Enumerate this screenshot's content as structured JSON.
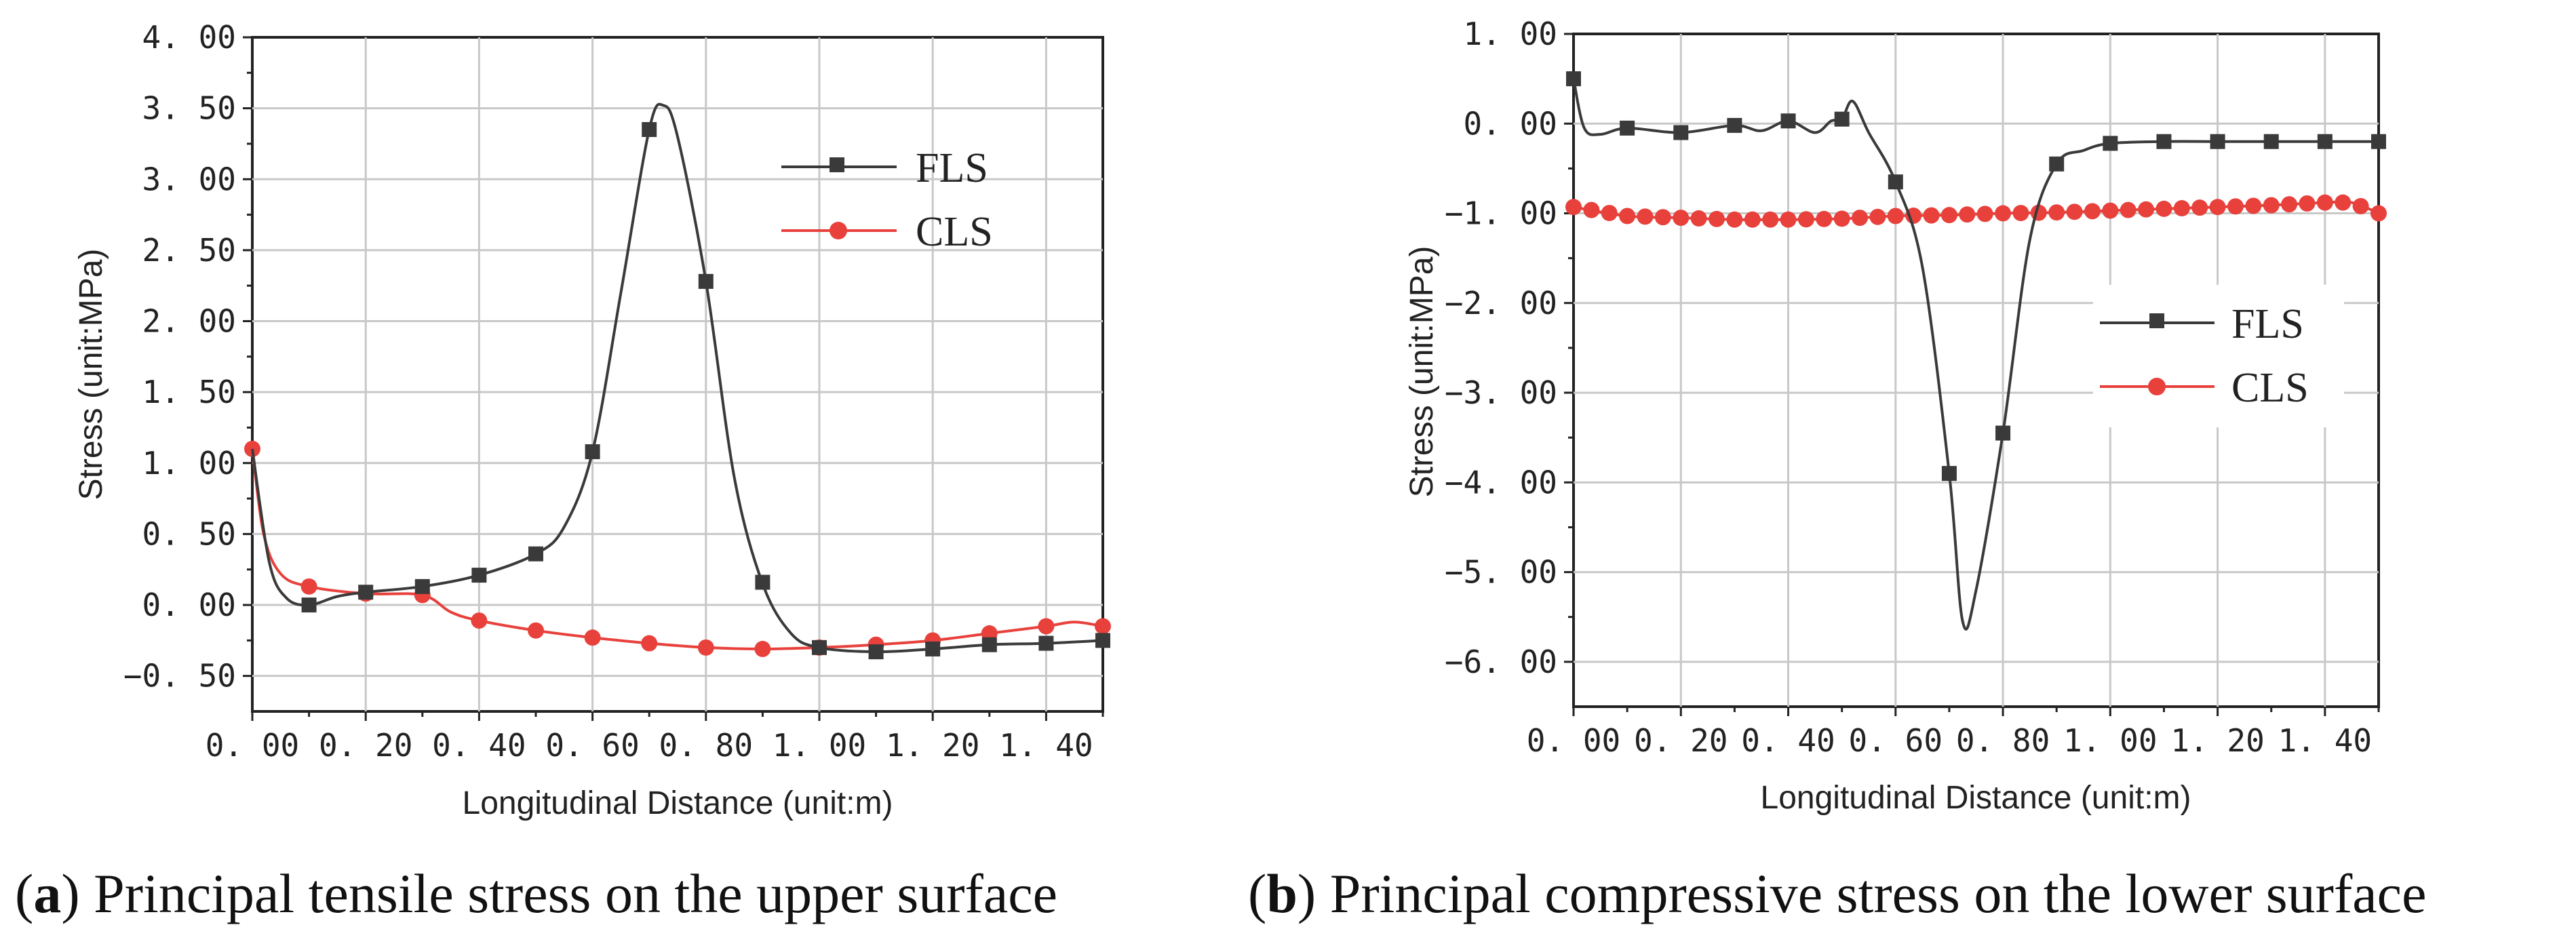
{
  "figure": {
    "captions": [
      {
        "letter": "a",
        "text": " Principal tensile stress on the upper surface"
      },
      {
        "letter": "b",
        "text": " Principal compressive stress on the lower surface"
      }
    ]
  },
  "chart_data": [
    {
      "type": "line",
      "title": "",
      "xlabel": "Longitudinal Distance (unit:m)",
      "ylabel": "Stress (unit:MPa)",
      "xlim": [
        0,
        1.5
      ],
      "ylim": [
        -0.75,
        4.0
      ],
      "xticks": [
        0,
        0.2,
        0.4,
        0.6,
        0.8,
        1.0,
        1.2,
        1.4
      ],
      "xtick_labels": [
        "0. 00",
        "0. 20",
        "0. 40",
        "0. 60",
        "0. 80",
        "1. 00",
        "1. 20",
        "1. 40"
      ],
      "yticks": [
        -0.5,
        0,
        0.5,
        1.0,
        1.5,
        2.0,
        2.5,
        3.0,
        3.5,
        4.0
      ],
      "ytick_labels": [
        "−0. 50",
        "0. 00",
        "0. 50",
        "1. 00",
        "1. 50",
        "2. 00",
        "2. 50",
        "3. 00",
        "3. 50",
        "4. 00"
      ],
      "grid": true,
      "legend_position": "upper-right",
      "series": [
        {
          "name": "FLS",
          "color": "#3a3a3a",
          "marker": "square",
          "line": [
            [
              0,
              1.1
            ],
            [
              0.03,
              0.3
            ],
            [
              0.06,
              0.05
            ],
            [
              0.1,
              0.0
            ],
            [
              0.15,
              0.06
            ],
            [
              0.2,
              0.09
            ],
            [
              0.3,
              0.13
            ],
            [
              0.4,
              0.21
            ],
            [
              0.5,
              0.36
            ],
            [
              0.55,
              0.55
            ],
            [
              0.6,
              1.08
            ],
            [
              0.65,
              2.2
            ],
            [
              0.7,
              3.35
            ],
            [
              0.725,
              3.52
            ],
            [
              0.75,
              3.3
            ],
            [
              0.8,
              2.28
            ],
            [
              0.85,
              0.9
            ],
            [
              0.9,
              0.15
            ],
            [
              0.95,
              -0.2
            ],
            [
              1.0,
              -0.3
            ],
            [
              1.1,
              -0.33
            ],
            [
              1.2,
              -0.31
            ],
            [
              1.3,
              -0.28
            ],
            [
              1.4,
              -0.27
            ],
            [
              1.5,
              -0.25
            ]
          ],
          "markers": [
            [
              0.1,
              0.0
            ],
            [
              0.2,
              0.09
            ],
            [
              0.3,
              0.13
            ],
            [
              0.4,
              0.21
            ],
            [
              0.5,
              0.36
            ],
            [
              0.6,
              1.08
            ],
            [
              0.7,
              3.35
            ],
            [
              0.8,
              2.28
            ],
            [
              0.9,
              0.16
            ],
            [
              1.0,
              -0.3
            ],
            [
              1.1,
              -0.33
            ],
            [
              1.2,
              -0.31
            ],
            [
              1.3,
              -0.28
            ],
            [
              1.4,
              -0.27
            ],
            [
              1.5,
              -0.25
            ]
          ]
        },
        {
          "name": "CLS",
          "color": "#e8413c",
          "marker": "circle",
          "line": [
            [
              0,
              1.1
            ],
            [
              0.02,
              0.5
            ],
            [
              0.05,
              0.22
            ],
            [
              0.1,
              0.13
            ],
            [
              0.2,
              0.08
            ],
            [
              0.3,
              0.07
            ],
            [
              0.35,
              -0.05
            ],
            [
              0.4,
              -0.11
            ],
            [
              0.5,
              -0.18
            ],
            [
              0.6,
              -0.23
            ],
            [
              0.7,
              -0.27
            ],
            [
              0.8,
              -0.3
            ],
            [
              0.9,
              -0.31
            ],
            [
              1.0,
              -0.3
            ],
            [
              1.1,
              -0.28
            ],
            [
              1.2,
              -0.25
            ],
            [
              1.3,
              -0.2
            ],
            [
              1.4,
              -0.15
            ],
            [
              1.45,
              -0.12
            ],
            [
              1.5,
              -0.15
            ]
          ],
          "markers": [
            [
              0,
              1.1
            ],
            [
              0.1,
              0.13
            ],
            [
              0.2,
              0.08
            ],
            [
              0.3,
              0.07
            ],
            [
              0.4,
              -0.11
            ],
            [
              0.5,
              -0.18
            ],
            [
              0.6,
              -0.23
            ],
            [
              0.7,
              -0.27
            ],
            [
              0.8,
              -0.3
            ],
            [
              0.9,
              -0.31
            ],
            [
              1.0,
              -0.3
            ],
            [
              1.1,
              -0.28
            ],
            [
              1.2,
              -0.25
            ],
            [
              1.3,
              -0.2
            ],
            [
              1.4,
              -0.15
            ],
            [
              1.5,
              -0.15
            ]
          ]
        }
      ]
    },
    {
      "type": "line",
      "title": "",
      "xlabel": "Longitudinal Distance (unit:m)",
      "ylabel": "Stress (unit:MPa)",
      "xlim": [
        0,
        1.5
      ],
      "ylim": [
        -6.5,
        1.0
      ],
      "xticks": [
        0,
        0.2,
        0.4,
        0.6,
        0.8,
        1.0,
        1.2,
        1.4
      ],
      "xtick_labels": [
        "0. 00",
        "0. 20",
        "0. 40",
        "0. 60",
        "0. 80",
        "1. 00",
        "1. 20",
        "1. 40"
      ],
      "yticks": [
        -6,
        -5,
        -4,
        -3,
        -2,
        -1,
        0,
        1
      ],
      "ytick_labels": [
        "−6. 00",
        "−5. 00",
        "−4. 00",
        "−3. 00",
        "−2. 00",
        "−1. 00",
        "0. 00",
        "1. 00"
      ],
      "grid": true,
      "legend_position": "center-right",
      "series": [
        {
          "name": "FLS",
          "color": "#3a3a3a",
          "marker": "square",
          "line": [
            [
              0,
              0.5
            ],
            [
              0.02,
              -0.05
            ],
            [
              0.05,
              -0.12
            ],
            [
              0.1,
              -0.05
            ],
            [
              0.2,
              -0.1
            ],
            [
              0.3,
              -0.02
            ],
            [
              0.35,
              -0.08
            ],
            [
              0.4,
              0.03
            ],
            [
              0.45,
              -0.1
            ],
            [
              0.48,
              0.03
            ],
            [
              0.5,
              0.05
            ],
            [
              0.52,
              0.25
            ],
            [
              0.55,
              -0.1
            ],
            [
              0.6,
              -0.65
            ],
            [
              0.65,
              -1.6
            ],
            [
              0.7,
              -3.9
            ],
            [
              0.725,
              -5.55
            ],
            [
              0.75,
              -5.2
            ],
            [
              0.8,
              -3.45
            ],
            [
              0.85,
              -1.3
            ],
            [
              0.9,
              -0.45
            ],
            [
              0.95,
              -0.3
            ],
            [
              1.0,
              -0.22
            ],
            [
              1.1,
              -0.2
            ],
            [
              1.2,
              -0.2
            ],
            [
              1.3,
              -0.2
            ],
            [
              1.4,
              -0.2
            ],
            [
              1.5,
              -0.2
            ]
          ],
          "markers": [
            [
              0,
              0.5
            ],
            [
              0.1,
              -0.05
            ],
            [
              0.2,
              -0.1
            ],
            [
              0.3,
              -0.02
            ],
            [
              0.4,
              0.03
            ],
            [
              0.5,
              0.05
            ],
            [
              0.6,
              -0.65
            ],
            [
              0.7,
              -3.9
            ],
            [
              0.8,
              -3.45
            ],
            [
              0.9,
              -0.45
            ],
            [
              1.0,
              -0.22
            ],
            [
              1.1,
              -0.2
            ],
            [
              1.2,
              -0.2
            ],
            [
              1.3,
              -0.2
            ],
            [
              1.4,
              -0.2
            ],
            [
              1.5,
              -0.2
            ]
          ]
        },
        {
          "name": "CLS",
          "color": "#e8413c",
          "marker": "circle",
          "line": [
            [
              0,
              -0.93
            ],
            [
              0.1,
              -1.03
            ],
            [
              0.2,
              -1.05
            ],
            [
              0.3,
              -1.07
            ],
            [
              0.4,
              -1.07
            ],
            [
              0.5,
              -1.06
            ],
            [
              0.6,
              -1.03
            ],
            [
              0.7,
              -1.02
            ],
            [
              0.8,
              -1.0
            ],
            [
              0.9,
              -0.99
            ],
            [
              1.0,
              -0.97
            ],
            [
              1.1,
              -0.95
            ],
            [
              1.2,
              -0.93
            ],
            [
              1.3,
              -0.91
            ],
            [
              1.4,
              -0.88
            ],
            [
              1.45,
              -0.88
            ],
            [
              1.5,
              -1.0
            ]
          ],
          "markers_x_range": [
            0,
            1.5
          ],
          "markers_count": 46
        }
      ]
    }
  ]
}
